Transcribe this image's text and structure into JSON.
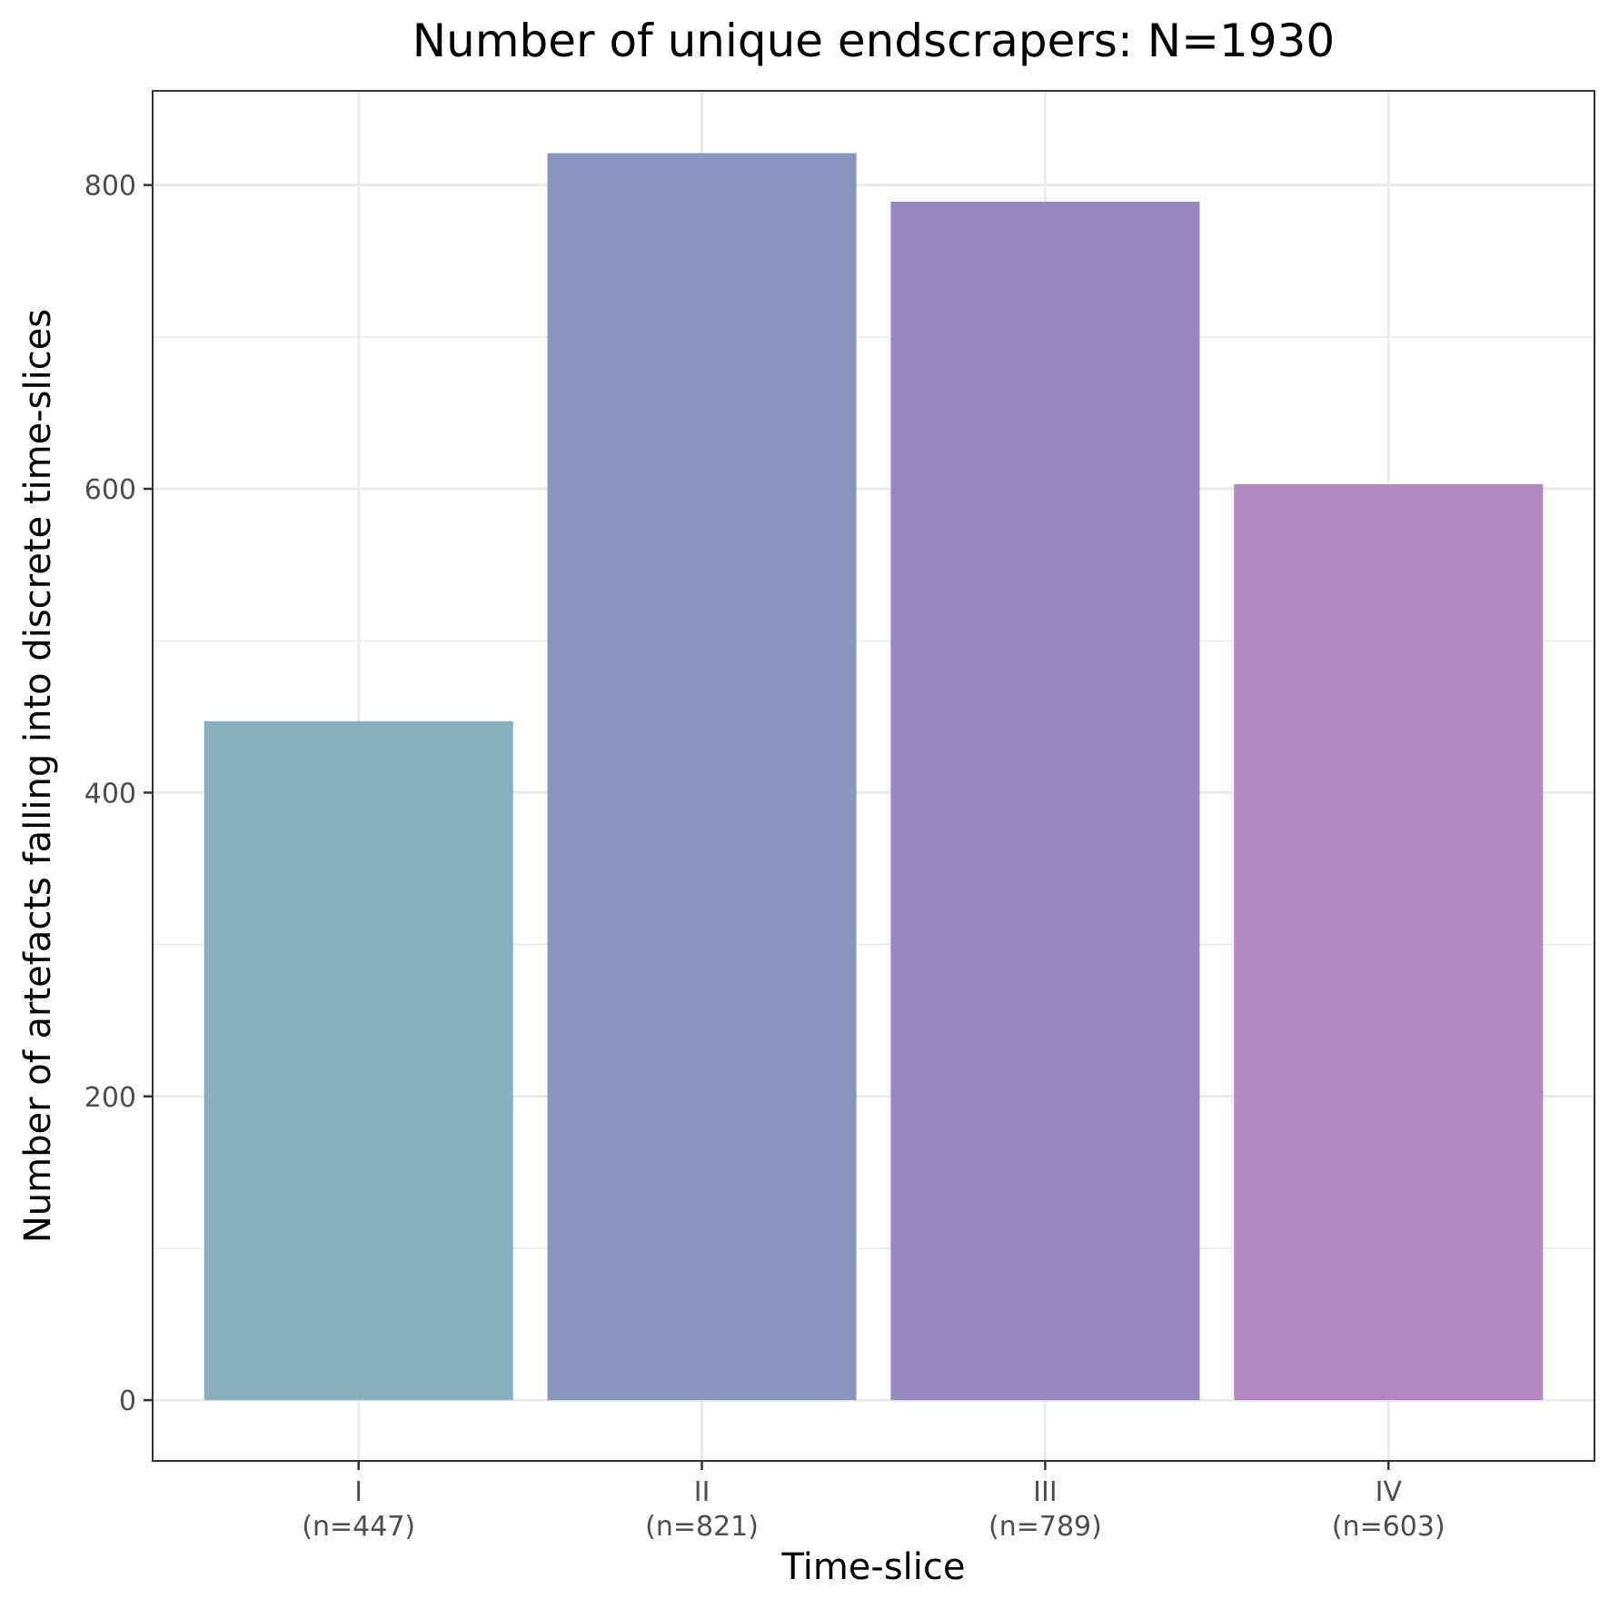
{
  "chart_data": {
    "type": "bar",
    "title": "Number of unique endscrapers: N=1930",
    "xlabel": "Time-slice",
    "ylabel": "Number of artefacts falling into discrete time-slices",
    "categories": [
      {
        "label": "I",
        "sublabel": "(n=447)"
      },
      {
        "label": "II",
        "sublabel": "(n=821)"
      },
      {
        "label": "III",
        "sublabel": "(n=789)"
      },
      {
        "label": "IV",
        "sublabel": "(n=603)"
      }
    ],
    "values": [
      447,
      821,
      789,
      603
    ],
    "colors": [
      "#89b0c1",
      "#8795bf",
      "#9787bf",
      "#b387c2"
    ],
    "ylim": [
      -40,
      862
    ],
    "y_ticks": [
      "0",
      "200",
      "400",
      "600",
      "800"
    ],
    "grid": true,
    "legend": "none"
  }
}
